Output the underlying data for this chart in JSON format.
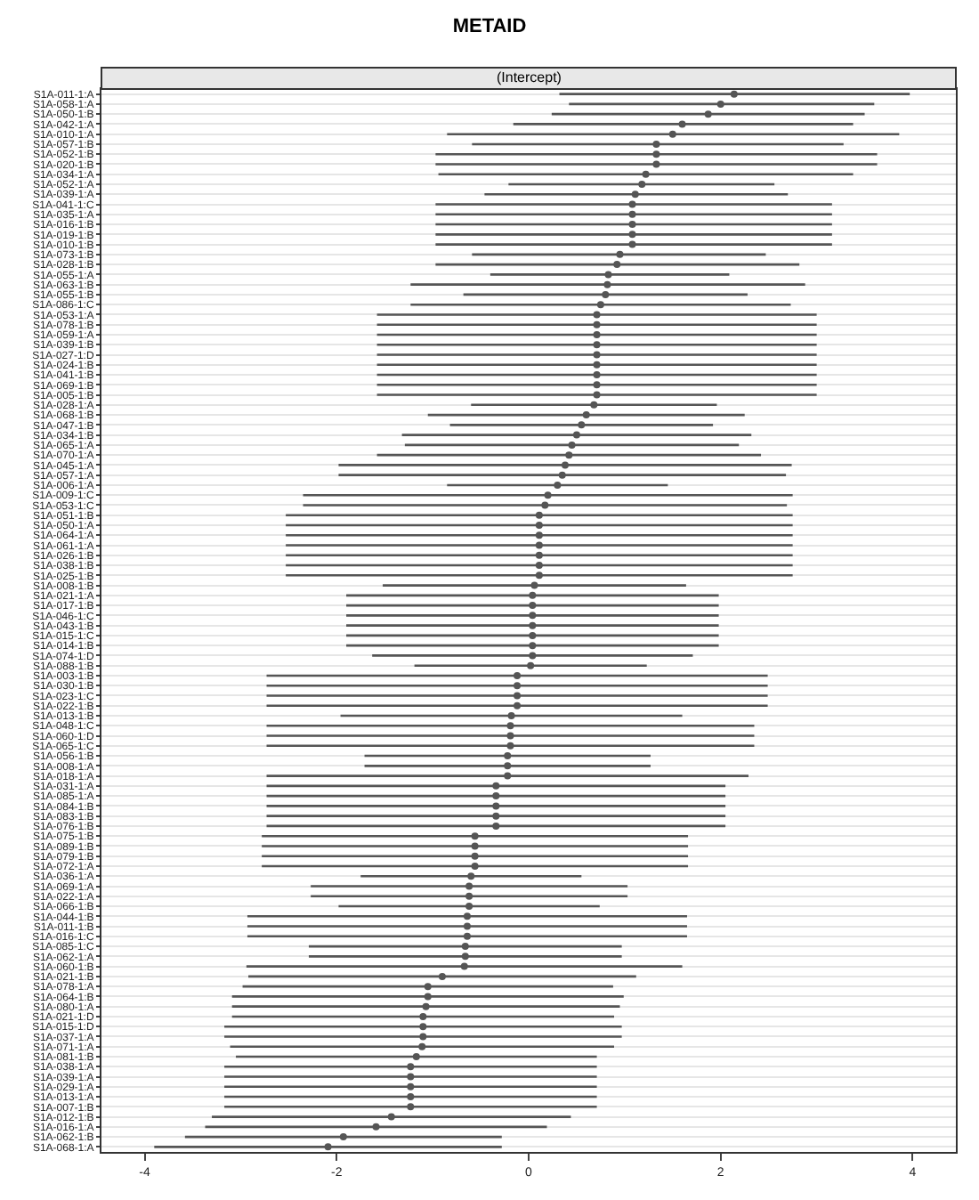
{
  "chart_data": {
    "type": "scatter",
    "title": "METAID",
    "subtitle": "(Intercept)",
    "orientation": "horizontal",
    "categories": [
      "S1A-011-1:A",
      "S1A-058-1:A",
      "S1A-050-1:B",
      "S1A-042-1:A",
      "S1A-010-1:A",
      "S1A-057-1:B",
      "S1A-052-1:B",
      "S1A-020-1:B",
      "S1A-034-1:A",
      "S1A-052-1:A",
      "S1A-039-1:A",
      "S1A-041-1:C",
      "S1A-035-1:A",
      "S1A-016-1:B",
      "S1A-019-1:B",
      "S1A-010-1:B",
      "S1A-073-1:B",
      "S1A-028-1:B",
      "S1A-055-1:A",
      "S1A-063-1:B",
      "S1A-055-1:B",
      "S1A-086-1:C",
      "S1A-053-1:A",
      "S1A-078-1:B",
      "S1A-059-1:A",
      "S1A-039-1:B",
      "S1A-027-1:D",
      "S1A-024-1:B",
      "S1A-041-1:B",
      "S1A-069-1:B",
      "S1A-005-1:B",
      "S1A-028-1:A",
      "S1A-068-1:B",
      "S1A-047-1:B",
      "S1A-034-1:B",
      "S1A-065-1:A",
      "S1A-070-1:A",
      "S1A-045-1:A",
      "S1A-057-1:A",
      "S1A-006-1:A",
      "S1A-009-1:C",
      "S1A-053-1:C",
      "S1A-051-1:B",
      "S1A-050-1:A",
      "S1A-064-1:A",
      "S1A-061-1:A",
      "S1A-026-1:B",
      "S1A-038-1:B",
      "S1A-025-1:B",
      "S1A-008-1:B",
      "S1A-021-1:A",
      "S1A-017-1:B",
      "S1A-046-1:C",
      "S1A-043-1:B",
      "S1A-015-1:C",
      "S1A-014-1:B",
      "S1A-074-1:D",
      "S1A-088-1:B",
      "S1A-003-1:B",
      "S1A-030-1:B",
      "S1A-023-1:C",
      "S1A-022-1:B",
      "S1A-013-1:B",
      "S1A-048-1:C",
      "S1A-060-1:D",
      "S1A-065-1:C",
      "S1A-056-1:B",
      "S1A-008-1:A",
      "S1A-018-1:A",
      "S1A-031-1:A",
      "S1A-085-1:A",
      "S1A-084-1:B",
      "S1A-083-1:B",
      "S1A-076-1:B",
      "S1A-075-1:B",
      "S1A-089-1:B",
      "S1A-079-1:B",
      "S1A-072-1:A",
      "S1A-036-1:A",
      "S1A-069-1:A",
      "S1A-022-1:A",
      "S1A-066-1:B",
      "S1A-044-1:B",
      "S1A-011-1:B",
      "S1A-016-1:C",
      "S1A-085-1:C",
      "S1A-062-1:A",
      "S1A-060-1:B",
      "S1A-021-1:B",
      "S1A-078-1:A",
      "S1A-064-1:B",
      "S1A-080-1:A",
      "S1A-021-1:D",
      "S1A-015-1:D",
      "S1A-037-1:A",
      "S1A-071-1:A",
      "S1A-081-1:B",
      "S1A-038-1:A",
      "S1A-039-1:A",
      "S1A-029-1:A",
      "S1A-013-1:A",
      "S1A-007-1:B",
      "S1A-012-1:B",
      "S1A-016-1:A",
      "S1A-062-1:B",
      "S1A-068-1:A"
    ],
    "values": [
      2.14,
      2.0,
      1.87,
      1.6,
      1.5,
      1.33,
      1.33,
      1.33,
      1.22,
      1.18,
      1.11,
      1.08,
      1.08,
      1.08,
      1.08,
      1.08,
      0.95,
      0.92,
      0.83,
      0.82,
      0.8,
      0.75,
      0.71,
      0.71,
      0.71,
      0.71,
      0.71,
      0.71,
      0.71,
      0.71,
      0.71,
      0.68,
      0.6,
      0.55,
      0.5,
      0.45,
      0.42,
      0.38,
      0.35,
      0.3,
      0.2,
      0.17,
      0.11,
      0.11,
      0.11,
      0.11,
      0.11,
      0.11,
      0.11,
      0.06,
      0.04,
      0.04,
      0.04,
      0.04,
      0.04,
      0.04,
      0.04,
      0.02,
      -0.12,
      -0.12,
      -0.12,
      -0.12,
      -0.18,
      -0.19,
      -0.19,
      -0.19,
      -0.22,
      -0.22,
      -0.22,
      -0.34,
      -0.34,
      -0.34,
      -0.34,
      -0.34,
      -0.56,
      -0.56,
      -0.56,
      -0.56,
      -0.6,
      -0.62,
      -0.62,
      -0.62,
      -0.64,
      -0.64,
      -0.64,
      -0.66,
      -0.66,
      -0.67,
      -0.9,
      -1.05,
      -1.05,
      -1.07,
      -1.1,
      -1.1,
      -1.1,
      -1.11,
      -1.17,
      -1.23,
      -1.23,
      -1.23,
      -1.23,
      -1.23,
      -1.43,
      -1.59,
      -1.93,
      -2.09
    ],
    "errors": [
      [
        0.32,
        3.97
      ],
      [
        0.42,
        3.6
      ],
      [
        0.24,
        3.5
      ],
      [
        -0.16,
        3.38
      ],
      [
        -0.85,
        3.86
      ],
      [
        -0.59,
        3.28
      ],
      [
        -0.97,
        3.63
      ],
      [
        -0.97,
        3.63
      ],
      [
        -0.94,
        3.38
      ],
      [
        -0.21,
        2.56
      ],
      [
        -0.46,
        2.7
      ],
      [
        -0.97,
        3.16
      ],
      [
        -0.97,
        3.16
      ],
      [
        -0.97,
        3.16
      ],
      [
        -0.97,
        3.16
      ],
      [
        -0.97,
        3.16
      ],
      [
        -0.59,
        2.47
      ],
      [
        -0.97,
        2.82
      ],
      [
        -0.4,
        2.09
      ],
      [
        -1.23,
        2.88
      ],
      [
        -0.68,
        2.28
      ],
      [
        -1.23,
        2.73
      ],
      [
        -1.58,
        3.0
      ],
      [
        -1.58,
        3.0
      ],
      [
        -1.58,
        3.0
      ],
      [
        -1.58,
        3.0
      ],
      [
        -1.58,
        3.0
      ],
      [
        -1.58,
        3.0
      ],
      [
        -1.58,
        3.0
      ],
      [
        -1.58,
        3.0
      ],
      [
        -1.58,
        3.0
      ],
      [
        -0.6,
        1.96
      ],
      [
        -1.05,
        2.25
      ],
      [
        -0.82,
        1.92
      ],
      [
        -1.32,
        2.32
      ],
      [
        -1.29,
        2.19
      ],
      [
        -1.58,
        2.42
      ],
      [
        -1.98,
        2.74
      ],
      [
        -1.98,
        2.68
      ],
      [
        -0.85,
        1.45
      ],
      [
        -2.35,
        2.75
      ],
      [
        -2.35,
        2.69
      ],
      [
        -2.53,
        2.75
      ],
      [
        -2.53,
        2.75
      ],
      [
        -2.53,
        2.75
      ],
      [
        -2.53,
        2.75
      ],
      [
        -2.53,
        2.75
      ],
      [
        -2.53,
        2.75
      ],
      [
        -2.53,
        2.75
      ],
      [
        -1.52,
        1.64
      ],
      [
        -1.9,
        1.98
      ],
      [
        -1.9,
        1.98
      ],
      [
        -1.9,
        1.98
      ],
      [
        -1.9,
        1.98
      ],
      [
        -1.9,
        1.98
      ],
      [
        -1.9,
        1.98
      ],
      [
        -1.63,
        1.71
      ],
      [
        -1.19,
        1.23
      ],
      [
        -2.73,
        2.49
      ],
      [
        -2.73,
        2.49
      ],
      [
        -2.73,
        2.49
      ],
      [
        -2.73,
        2.49
      ],
      [
        -1.96,
        1.6
      ],
      [
        -2.73,
        2.35
      ],
      [
        -2.73,
        2.35
      ],
      [
        -2.73,
        2.35
      ],
      [
        -1.71,
        1.27
      ],
      [
        -1.71,
        1.27
      ],
      [
        -2.73,
        2.29
      ],
      [
        -2.73,
        2.05
      ],
      [
        -2.73,
        2.05
      ],
      [
        -2.73,
        2.05
      ],
      [
        -2.73,
        2.05
      ],
      [
        -2.73,
        2.05
      ],
      [
        -2.78,
        1.66
      ],
      [
        -2.78,
        1.66
      ],
      [
        -2.78,
        1.66
      ],
      [
        -2.78,
        1.66
      ],
      [
        -1.75,
        0.55
      ],
      [
        -2.27,
        1.03
      ],
      [
        -2.27,
        1.03
      ],
      [
        -1.98,
        0.74
      ],
      [
        -2.93,
        1.65
      ],
      [
        -2.93,
        1.65
      ],
      [
        -2.93,
        1.65
      ],
      [
        -2.29,
        0.97
      ],
      [
        -2.29,
        0.97
      ],
      [
        -2.94,
        1.6
      ],
      [
        -2.92,
        1.12
      ],
      [
        -2.98,
        0.88
      ],
      [
        -3.09,
        0.99
      ],
      [
        -3.09,
        0.95
      ],
      [
        -3.09,
        0.89
      ],
      [
        -3.17,
        0.97
      ],
      [
        -3.17,
        0.97
      ],
      [
        -3.11,
        0.89
      ],
      [
        -3.05,
        0.71
      ],
      [
        -3.17,
        0.71
      ],
      [
        -3.17,
        0.71
      ],
      [
        -3.17,
        0.71
      ],
      [
        -3.17,
        0.71
      ],
      [
        -3.17,
        0.71
      ],
      [
        -3.3,
        0.44
      ],
      [
        -3.37,
        0.19
      ],
      [
        -3.58,
        -0.28
      ],
      [
        -3.9,
        -0.28
      ]
    ],
    "color": "#555555",
    "marker": "circle",
    "xlim": [
      -4.45,
      4.45
    ],
    "xticks": [
      -4,
      -2,
      0,
      2,
      4
    ],
    "grid": "y"
  }
}
